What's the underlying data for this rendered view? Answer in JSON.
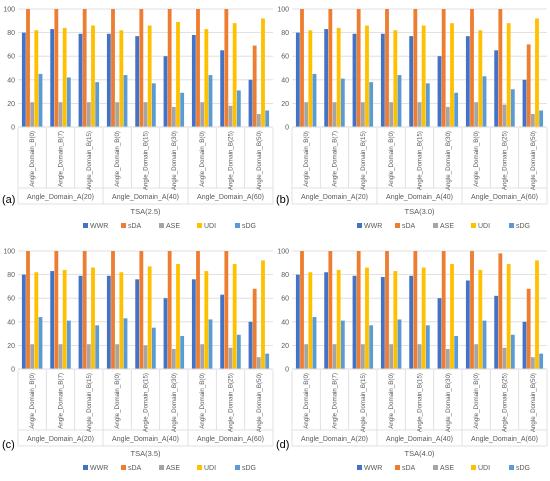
{
  "panel_letters": [
    "(a)",
    "(b)",
    "(c)",
    "(d)"
  ],
  "chart_data": [
    {
      "type": "bar",
      "title": "",
      "xlabel": "TSA(2.5)",
      "ylabel": "",
      "ylim": [
        0,
        100
      ],
      "yticks": [
        0,
        20,
        40,
        60,
        80,
        100
      ],
      "grid": true,
      "legend": "bottom-right",
      "categories": [
        "Angle_Domain_B(0)",
        "Angle_Domain_B(7)",
        "Angle_Domain_B(15)",
        "Angle_Domain_B(0)",
        "Angle_Domain_B(15)",
        "Angle_Domain_B(30)",
        "Angle_Domain_B(0)",
        "Angle_Domain_B(25)",
        "Angle_Domain_B(50)"
      ],
      "groups": [
        {
          "label": "Angle_Domain_A(20)",
          "count": 3
        },
        {
          "label": "Angle_Domain_A(40)",
          "count": 3
        },
        {
          "label": "Angle_Domain_A(60)",
          "count": 3
        }
      ],
      "series": [
        {
          "name": "WWR",
          "color": "#4472C4",
          "values": [
            80,
            83,
            79,
            79,
            77,
            60,
            78,
            65,
            40
          ]
        },
        {
          "name": "sDA",
          "color": "#ED7D31",
          "values": [
            100,
            100,
            100,
            100,
            100,
            100,
            100,
            100,
            69
          ]
        },
        {
          "name": "ASE",
          "color": "#A5A5A5",
          "values": [
            21,
            21,
            21,
            21,
            21,
            17,
            21,
            18,
            11
          ]
        },
        {
          "name": "UDI",
          "color": "#FFC000",
          "values": [
            82,
            84,
            86,
            82,
            86,
            89,
            83,
            88,
            92
          ]
        },
        {
          "name": "sDG",
          "color": "#5B9BD5",
          "values": [
            45,
            42,
            38,
            44,
            37,
            29,
            44,
            31,
            14
          ]
        }
      ]
    },
    {
      "type": "bar",
      "title": "",
      "xlabel": "TSA(3.0)",
      "ylabel": "",
      "ylim": [
        0,
        100
      ],
      "yticks": [
        0,
        20,
        40,
        60,
        80,
        100
      ],
      "grid": true,
      "legend": "bottom-right",
      "categories": [
        "Angle_Domain_B(0)",
        "Angle_Domain_B(7)",
        "Angle_Domain_B(15)",
        "Angle_Domain_B(0)",
        "Angle_Domain_B(15)",
        "Angle_Domain_B(30)",
        "Angle_Domain_B(0)",
        "Angle_Domain_B(25)",
        "Angle_Domain_B(50)"
      ],
      "groups": [
        {
          "label": "Angle_Domain_A(20)",
          "count": 3
        },
        {
          "label": "Angle_Domain_A(40)",
          "count": 3
        },
        {
          "label": "Angle_Domain_A(60)",
          "count": 3
        }
      ],
      "series": [
        {
          "name": "WWR",
          "color": "#4472C4",
          "values": [
            80,
            83,
            79,
            79,
            77,
            60,
            77,
            65,
            40
          ]
        },
        {
          "name": "sDA",
          "color": "#ED7D31",
          "values": [
            100,
            100,
            100,
            100,
            100,
            100,
            100,
            100,
            70
          ]
        },
        {
          "name": "ASE",
          "color": "#A5A5A5",
          "values": [
            21,
            21,
            21,
            21,
            21,
            17,
            21,
            19,
            11
          ]
        },
        {
          "name": "UDI",
          "color": "#FFC000",
          "values": [
            82,
            84,
            86,
            82,
            86,
            88,
            82,
            88,
            92
          ]
        },
        {
          "name": "sDG",
          "color": "#5B9BD5",
          "values": [
            45,
            41,
            38,
            44,
            37,
            29,
            43,
            32,
            14
          ]
        }
      ]
    },
    {
      "type": "bar",
      "title": "",
      "xlabel": "TSA(3.5)",
      "ylabel": "",
      "ylim": [
        0,
        100
      ],
      "yticks": [
        0,
        20,
        40,
        60,
        80,
        100
      ],
      "grid": true,
      "legend": "bottom-right",
      "categories": [
        "Angle_Domain_B(0)",
        "Angle_Domain_B(7)",
        "Angle_Domain_B(15)",
        "Angle_Domain_B(0)",
        "Angle_Domain_B(15)",
        "Angle_Domain_B(30)",
        "Angle_Domain_B(0)",
        "Angle_Domain_B(25)",
        "Angle_Domain_B(50)"
      ],
      "groups": [
        {
          "label": "Angle_Domain_A(20)",
          "count": 3
        },
        {
          "label": "Angle_Domain_A(40)",
          "count": 3
        },
        {
          "label": "Angle_Domain_A(60)",
          "count": 3
        }
      ],
      "series": [
        {
          "name": "WWR",
          "color": "#4472C4",
          "values": [
            80,
            83,
            79,
            79,
            76,
            60,
            76,
            63,
            40
          ]
        },
        {
          "name": "sDA",
          "color": "#ED7D31",
          "values": [
            100,
            100,
            100,
            100,
            100,
            100,
            100,
            100,
            68
          ]
        },
        {
          "name": "ASE",
          "color": "#A5A5A5",
          "values": [
            21,
            21,
            21,
            21,
            20,
            17,
            21,
            18,
            10
          ]
        },
        {
          "name": "UDI",
          "color": "#FFC000",
          "values": [
            82,
            84,
            86,
            82,
            87,
            89,
            83,
            89,
            92
          ]
        },
        {
          "name": "sDG",
          "color": "#5B9BD5",
          "values": [
            44,
            41,
            37,
            43,
            35,
            28,
            42,
            29,
            13
          ]
        }
      ]
    },
    {
      "type": "bar",
      "title": "",
      "xlabel": "TSA(4.0)",
      "ylabel": "",
      "ylim": [
        0,
        100
      ],
      "yticks": [
        0,
        20,
        40,
        60,
        80,
        100
      ],
      "grid": true,
      "legend": "bottom-right",
      "categories": [
        "Angle_Domain_B(0)",
        "Angle_Domain_B(7)",
        "Angle_Domain_B(15)",
        "Angle_Domain_B(0)",
        "Angle_Domain_B(15)",
        "Angle_Domain_B(30)",
        "Angle_Domain_B(0)",
        "Angle_Domain_B(25)",
        "Angle_Domain_B(50)"
      ],
      "groups": [
        {
          "label": "Angle_Domain_A(20)",
          "count": 3
        },
        {
          "label": "Angle_Domain_A(40)",
          "count": 3
        },
        {
          "label": "Angle_Domain_A(60)",
          "count": 3
        }
      ],
      "series": [
        {
          "name": "WWR",
          "color": "#4472C4",
          "values": [
            80,
            82,
            79,
            78,
            79,
            60,
            75,
            62,
            40
          ]
        },
        {
          "name": "sDA",
          "color": "#ED7D31",
          "values": [
            100,
            100,
            100,
            100,
            100,
            100,
            100,
            98,
            68
          ]
        },
        {
          "name": "ASE",
          "color": "#A5A5A5",
          "values": [
            21,
            21,
            21,
            21,
            21,
            17,
            21,
            18,
            10
          ]
        },
        {
          "name": "UDI",
          "color": "#FFC000",
          "values": [
            82,
            84,
            86,
            83,
            86,
            89,
            84,
            89,
            92
          ]
        },
        {
          "name": "sDG",
          "color": "#5B9BD5",
          "values": [
            44,
            41,
            37,
            42,
            37,
            28,
            41,
            29,
            13
          ]
        }
      ]
    }
  ]
}
